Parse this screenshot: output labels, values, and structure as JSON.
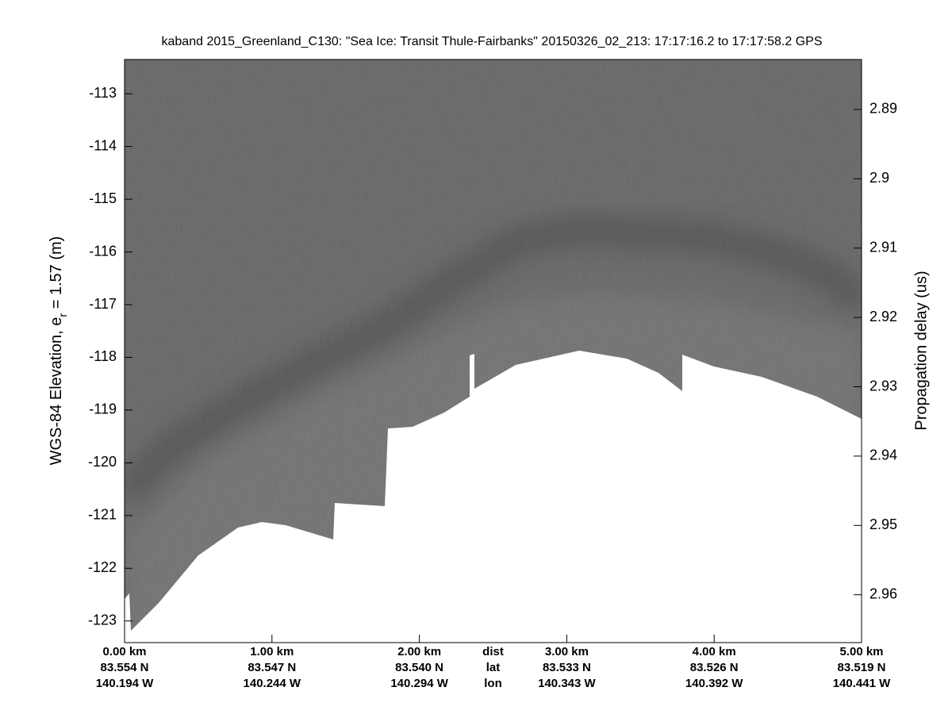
{
  "chart_data": {
    "type": "echogram",
    "title": "kaband 2015_Greenland_C130: \"Sea Ice: Transit Thule-Fairbanks\"  20150326_02_213: 17:17:16.2 to 17:17:58.2 GPS",
    "ylabel": [
      "WGS-84 Elevation, e",
      "r",
      " = 1.57 (m)"
    ],
    "y2label": "Propagation delay (us)",
    "xlim": [
      0,
      5
    ],
    "xticks": [
      {
        "value": 0,
        "label": "0.00 km"
      },
      {
        "value": 1,
        "label": "1.00 km"
      },
      {
        "value": 2,
        "label": "2.00 km"
      },
      {
        "value": 3,
        "label": "3.00 km"
      },
      {
        "value": 4,
        "label": "4.00 km"
      },
      {
        "value": 5,
        "label": "5.00 km"
      }
    ],
    "xtick_lat": [
      "83.554 N",
      "83.547 N",
      "83.540 N",
      "83.533 N",
      "83.526 N",
      "83.519 N"
    ],
    "xtick_lon": [
      "140.194 W",
      "140.244 W",
      "140.294 W",
      "140.343 W",
      "140.392 W",
      "140.441 W"
    ],
    "xtick_row_labels": [
      "dist",
      "lat",
      "lon"
    ],
    "ylim": [
      -123.41,
      -112.35
    ],
    "yticks": [
      -113,
      -114,
      -115,
      -116,
      -117,
      -118,
      -119,
      -120,
      -121,
      -122,
      -123
    ],
    "y2lim": [
      2.8828,
      2.9669
    ],
    "y2ticks": [
      2.89,
      2.9,
      2.91,
      2.92,
      2.93,
      2.94,
      2.95,
      2.96
    ],
    "grid": false
  }
}
